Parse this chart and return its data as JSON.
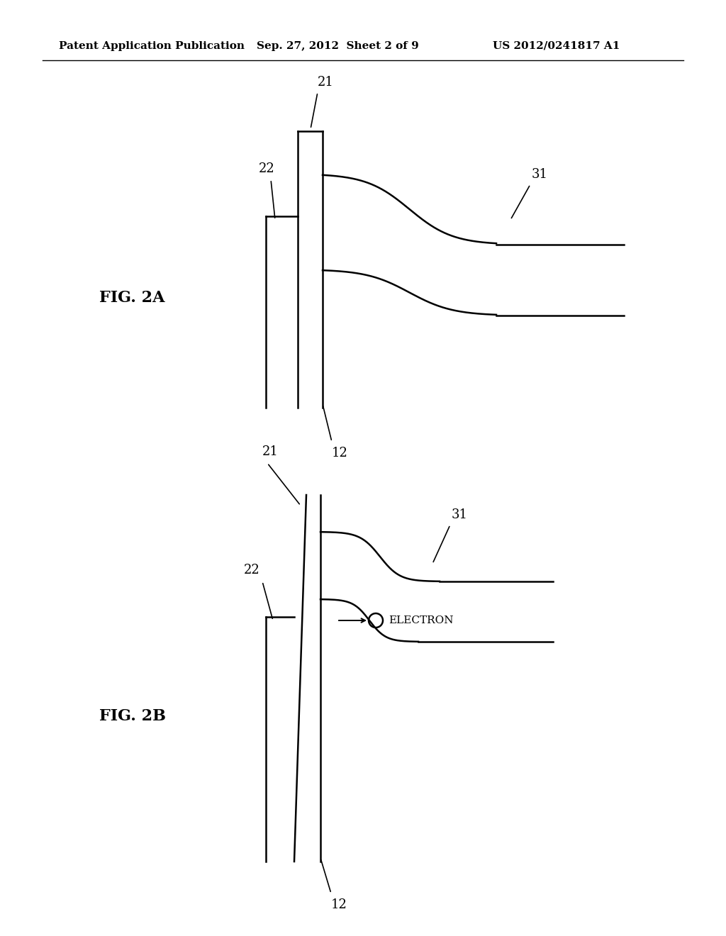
{
  "bg_color": "#ffffff",
  "line_color": "#000000",
  "header_left": "Patent Application Publication",
  "header_mid": "Sep. 27, 2012  Sheet 2 of 9",
  "header_right": "US 2012/0241817 A1",
  "fig_label_A": "FIG. 2A",
  "fig_label_B": "FIG. 2B",
  "label_21": "21",
  "label_22": "22",
  "label_12": "12",
  "label_31": "31",
  "label_electron": "ELECTRON",
  "header_fontsize": 11,
  "label_fontsize": 13,
  "fig_label_fontsize": 16
}
